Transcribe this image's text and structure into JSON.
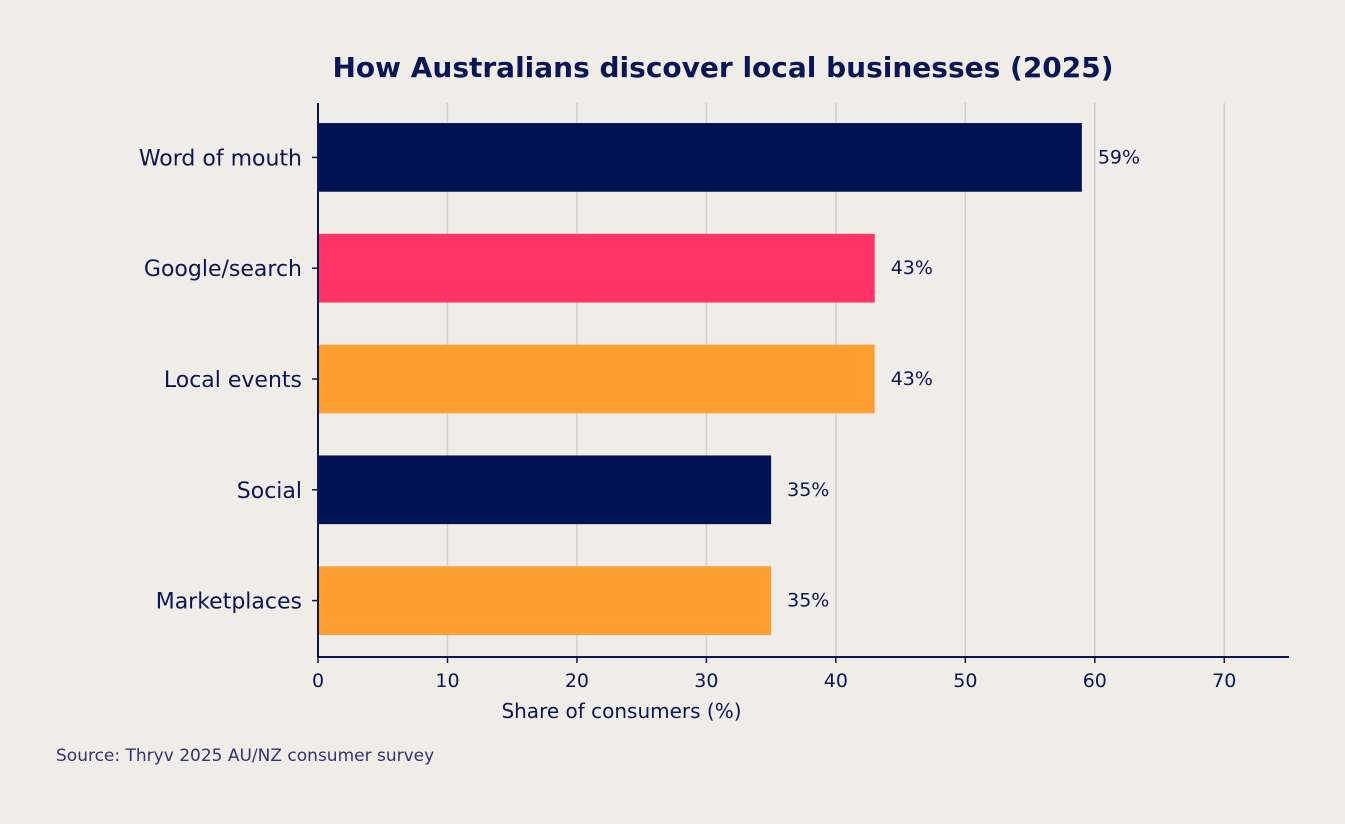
{
  "chart_data": {
    "type": "bar",
    "orientation": "horizontal",
    "title": "How Australians discover local businesses (2025)",
    "xlabel": "Share of consumers (%)",
    "ylabel": "",
    "categories": [
      "Word of mouth",
      "Google/search",
      "Local events",
      "Social",
      "Marketplaces"
    ],
    "values": [
      59,
      43,
      43,
      35,
      35
    ],
    "value_labels": [
      "59%",
      "43%",
      "43%",
      "35%",
      "35%"
    ],
    "bar_colors": [
      "#021353",
      "#ff3366",
      "#ff9f32",
      "#021353",
      "#ff9f32"
    ],
    "xlim": [
      0,
      75
    ],
    "xticks": [
      0,
      10,
      20,
      30,
      40,
      50,
      60,
      70
    ],
    "grid": "vertical",
    "legend": "none"
  },
  "source": "Source: Thryv 2025 AU/NZ consumer survey",
  "colors": {
    "background": "#f0ede8",
    "axis": "#0b1654",
    "gridline": "#cfcfcf",
    "text": "#0b1654"
  }
}
